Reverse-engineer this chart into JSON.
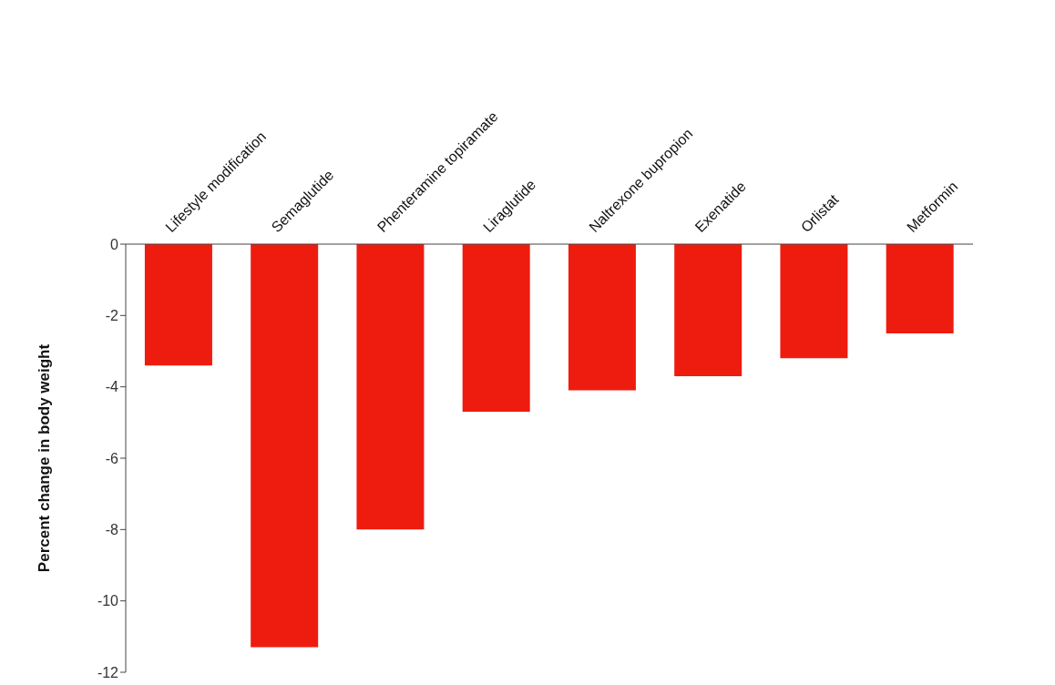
{
  "chart_data": {
    "type": "bar",
    "ylabel": "Percent change in body weight",
    "categories": [
      "Lifestyle modification",
      "Semaglutide",
      "Phenteramine topiramate",
      "Liraglutide",
      "Naltrexone bupropion",
      "Exenatide",
      "Orlistat",
      "Metformin"
    ],
    "values": [
      -3.4,
      -11.3,
      -8.0,
      -4.7,
      -4.1,
      -3.7,
      -3.2,
      -2.5
    ],
    "color": "#ee1c0f",
    "ylim": [
      -12,
      0
    ],
    "yticks": [
      0,
      -2,
      -4,
      -6,
      -8,
      -10,
      -12
    ],
    "grid": false
  }
}
